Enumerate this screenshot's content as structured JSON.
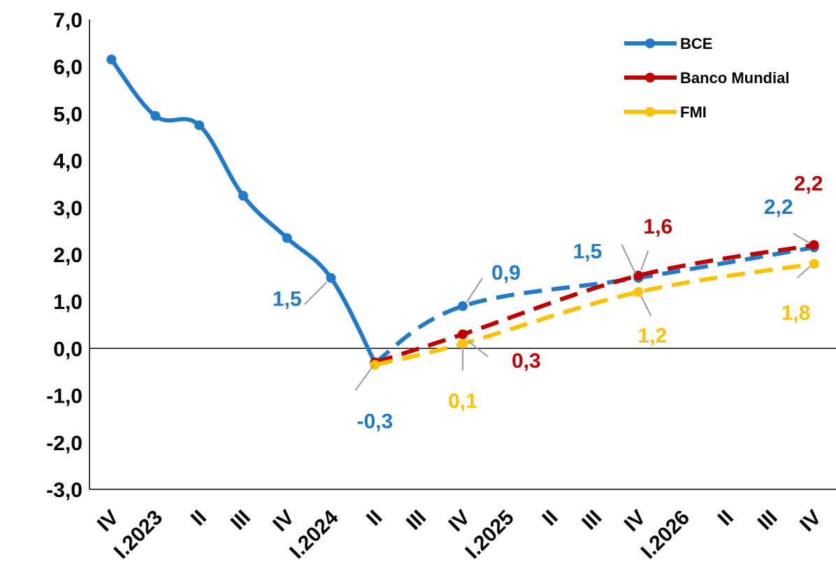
{
  "chart_data": {
    "type": "line",
    "title": "",
    "xlabel": "",
    "ylabel": "",
    "ylim": [
      -3,
      7
    ],
    "yticks": [
      "7,0",
      "6,0",
      "5,0",
      "4,0",
      "3,0",
      "2,0",
      "1,0",
      "0,0",
      "-1,0",
      "-2,0",
      "-3,0"
    ],
    "categories": [
      "IV",
      "I.2023",
      "II",
      "III",
      "IV",
      "I.2024",
      "II",
      "III",
      "IV",
      "I.2025",
      "II",
      "III",
      "IV",
      "I.2026",
      "II",
      "III",
      "IV"
    ],
    "grid": false,
    "legend_position": "top-right",
    "series": [
      {
        "name": "BCE",
        "color": "#1F7BC8",
        "style": "solid-then-dashed",
        "points": [
          {
            "i": 0,
            "v": 6.15
          },
          {
            "i": 1,
            "v": 4.95
          },
          {
            "i": 2,
            "v": 4.75
          },
          {
            "i": 3,
            "v": 3.25
          },
          {
            "i": 4,
            "v": 2.35
          },
          {
            "i": 5,
            "v": 1.5
          },
          {
            "i": 6,
            "v": -0.3
          },
          {
            "i": 8,
            "v": 0.9
          },
          {
            "i": 12,
            "v": 1.5
          },
          {
            "i": 16,
            "v": 2.15
          }
        ],
        "dashed_from": 6
      },
      {
        "name": "Banco Mundial",
        "color": "#C00000",
        "style": "dashed",
        "points": [
          {
            "i": 6,
            "v": -0.3
          },
          {
            "i": 8,
            "v": 0.3
          },
          {
            "i": 12,
            "v": 1.55
          },
          {
            "i": 16,
            "v": 2.2
          }
        ]
      },
      {
        "name": "FMI",
        "color": "#FFC000",
        "style": "dashed",
        "points": [
          {
            "i": 6,
            "v": -0.35
          },
          {
            "i": 8,
            "v": 0.1
          },
          {
            "i": 12,
            "v": 1.2
          },
          {
            "i": 16,
            "v": 1.8
          }
        ]
      }
    ],
    "annotations": [
      {
        "text": "1,5",
        "color": "#1F7BC8",
        "i": 5,
        "v": 1.5
      },
      {
        "text": "-0,3",
        "color": "#1F7BC8",
        "i": 6,
        "v": -0.3
      },
      {
        "text": "0,9",
        "color": "#1F7BC8",
        "i": 8,
        "v": 0.9
      },
      {
        "text": "0,3",
        "color": "#C00000",
        "i": 8,
        "v": 0.3
      },
      {
        "text": "0,1",
        "color": "#FFC000",
        "i": 8,
        "v": 0.1
      },
      {
        "text": "1,5",
        "color": "#1F7BC8",
        "i": 12,
        "v": 1.5
      },
      {
        "text": "1,6",
        "color": "#C00000",
        "i": 12,
        "v": 1.55
      },
      {
        "text": "1,2",
        "color": "#FFC000",
        "i": 12,
        "v": 1.2
      },
      {
        "text": "2,2",
        "color": "#1F7BC8",
        "i": 16,
        "v": 2.15
      },
      {
        "text": "2,2",
        "color": "#C00000",
        "i": 16,
        "v": 2.2
      },
      {
        "text": "1,8",
        "color": "#FFC000",
        "i": 16,
        "v": 1.8
      }
    ]
  }
}
